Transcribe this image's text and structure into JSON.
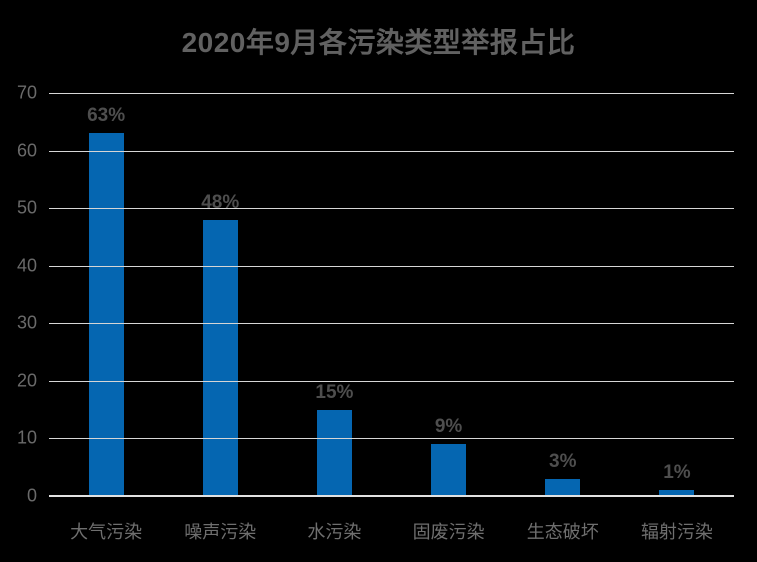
{
  "title": "2020年9月各污染类型举报占比",
  "colors": {
    "background": "#000000",
    "bar": "#0566B1",
    "gridline": "#D6D6D6",
    "axis_line": "#E2E2E2",
    "title_text": "#616161",
    "data_label_text": "#4E4E4E",
    "tick_label_text": "#6A6A6A",
    "category_label_text": "#6F6F6F"
  },
  "chart_data": {
    "type": "bar",
    "title": "2020年9月各污染类型举报占比",
    "categories": [
      "大气污染",
      "噪声污染",
      "水污染",
      "固废污染",
      "生态破坏",
      "辐射污染"
    ],
    "values": [
      63,
      48,
      15,
      9,
      3,
      1
    ],
    "data_labels": [
      "63%",
      "48%",
      "15%",
      "9%",
      "3%",
      "1%"
    ],
    "xlabel": "",
    "ylabel": "",
    "ylim": [
      0,
      70
    ],
    "yticks": [
      0,
      10,
      20,
      30,
      40,
      50,
      60,
      70
    ],
    "grid": "horizontal",
    "legend": "none"
  }
}
